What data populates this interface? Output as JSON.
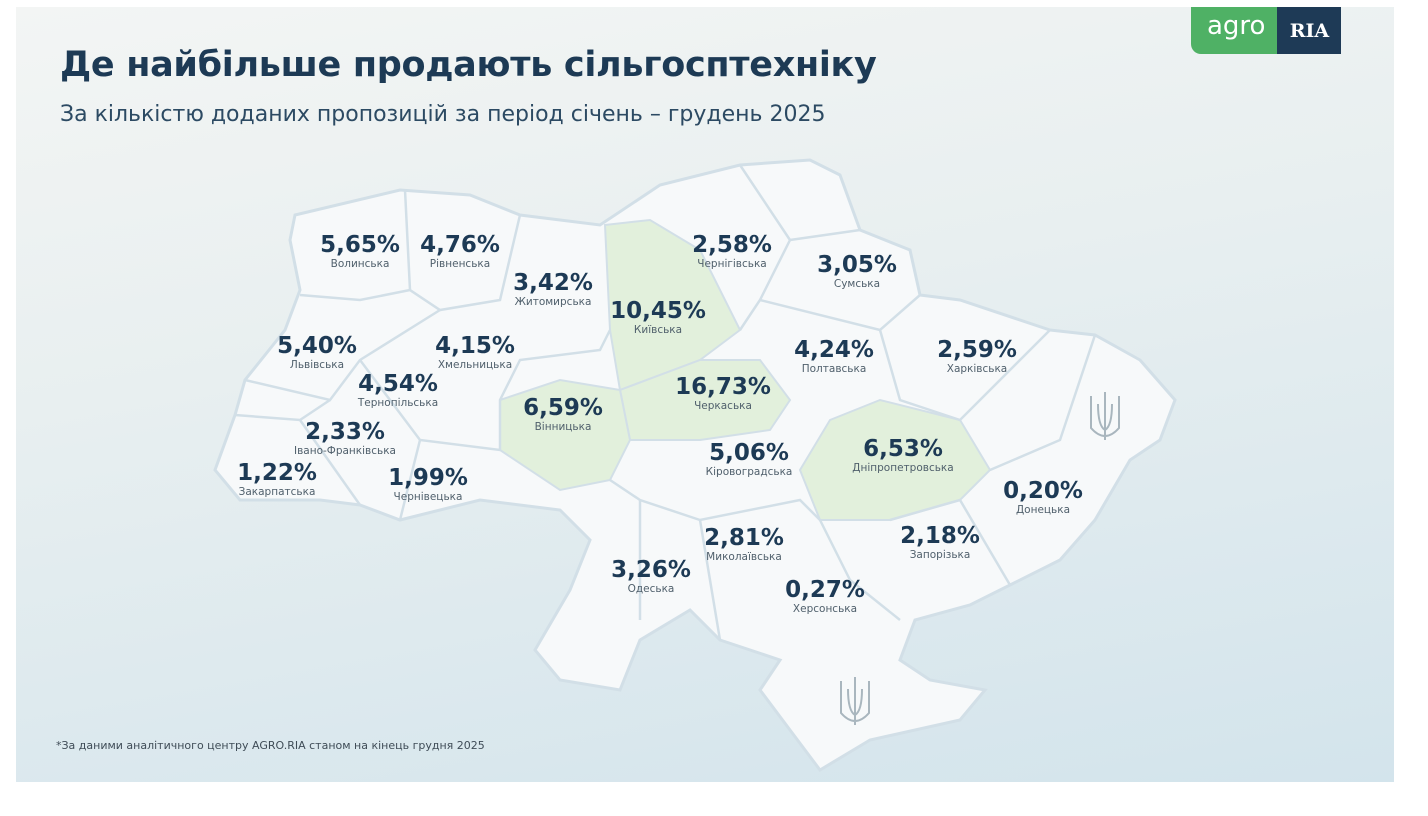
{
  "title": "Де найбільше продають сільгосптехніку",
  "subtitle": "За кількістю доданих пропозицій за період січень – грудень 2025",
  "logo": {
    "agro": "agro",
    "ria": "RIA"
  },
  "footnote": "*За даними аналітичного центру AGRO.RIA станом на кінець грудня 2025",
  "colors": {
    "title": "#1d3a55",
    "highlight": "#e2f0dc",
    "region": "#f7f9fa",
    "border": "#cfdde6",
    "logo_green": "#4fb165",
    "logo_navy": "#1e3a56"
  },
  "icons": [
    "trident-icon-east",
    "trident-icon-crimea"
  ],
  "regions": [
    {
      "name": "Волинська",
      "value": "5,65%",
      "highlight": false
    },
    {
      "name": "Рівненська",
      "value": "4,76%",
      "highlight": false
    },
    {
      "name": "Житомирська",
      "value": "3,42%",
      "highlight": false
    },
    {
      "name": "Київська",
      "value": "10,45%",
      "highlight": true
    },
    {
      "name": "Чернігівська",
      "value": "2,58%",
      "highlight": false
    },
    {
      "name": "Сумська",
      "value": "3,05%",
      "highlight": false
    },
    {
      "name": "Львівська",
      "value": "5,40%",
      "highlight": false
    },
    {
      "name": "Хмельницька",
      "value": "4,15%",
      "highlight": false
    },
    {
      "name": "Тернопільська",
      "value": "4,54%",
      "highlight": false
    },
    {
      "name": "Вінницька",
      "value": "6,59%",
      "highlight": true
    },
    {
      "name": "Черкаська",
      "value": "16,73%",
      "highlight": true
    },
    {
      "name": "Полтавська",
      "value": "4,24%",
      "highlight": false
    },
    {
      "name": "Харківська",
      "value": "2,59%",
      "highlight": false
    },
    {
      "name": "Івано-Франківська",
      "value": "2,33%",
      "highlight": false
    },
    {
      "name": "Кіровоградська",
      "value": "5,06%",
      "highlight": false
    },
    {
      "name": "Дніпропетровська",
      "value": "6,53%",
      "highlight": true
    },
    {
      "name": "Закарпатська",
      "value": "1,22%",
      "highlight": false
    },
    {
      "name": "Чернівецька",
      "value": "1,99%",
      "highlight": false
    },
    {
      "name": "Донецька",
      "value": "0,20%",
      "highlight": false
    },
    {
      "name": "Миколаївська",
      "value": "2,81%",
      "highlight": false
    },
    {
      "name": "Запорізька",
      "value": "2,18%",
      "highlight": false
    },
    {
      "name": "Одеська",
      "value": "3,26%",
      "highlight": false
    },
    {
      "name": "Херсонська",
      "value": "0,27%",
      "highlight": false
    }
  ]
}
